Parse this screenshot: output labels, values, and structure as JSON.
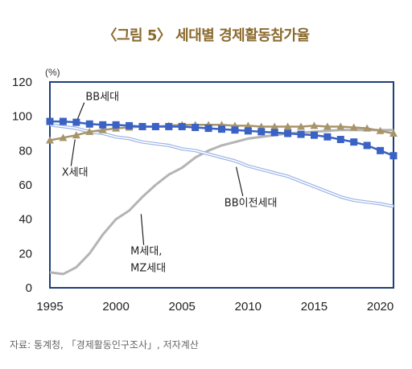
{
  "title": "〈그림 5〉 세대별 경제활동참가율",
  "source": "자료: 통계청, 「경제활동인구조사」, 저자계산",
  "colors": {
    "title": "#8a6a2e",
    "bb": "#3a62c4",
    "x": "#a8946a",
    "m_mz": "#b4b4b4",
    "bb_pre": "#9bb4e6",
    "axis_frame": "#1f3f7a"
  },
  "chart_data": {
    "type": "line",
    "title": "〈그림 5〉 세대별 경제활동참가율",
    "xlabel": "",
    "ylabel": "(%)",
    "xlim": [
      1995,
      2021
    ],
    "ylim": [
      0,
      120
    ],
    "x_ticks": [
      "1995",
      "2000",
      "2005",
      "2010",
      "2015",
      "2020"
    ],
    "y_ticks": [
      "0",
      "20",
      "40",
      "60",
      "80",
      "100",
      "120"
    ],
    "grid": false,
    "series": [
      {
        "name": "BB세대",
        "marker": "square",
        "x": [
          1995,
          1996,
          1997,
          1998,
          1999,
          2000,
          2001,
          2002,
          2003,
          2004,
          2005,
          2006,
          2007,
          2008,
          2009,
          2010,
          2011,
          2012,
          2013,
          2014,
          2015,
          2016,
          2017,
          2018,
          2019,
          2020,
          2021
        ],
        "y": [
          97,
          97,
          96.5,
          95.5,
          95,
          95,
          94.5,
          94,
          94,
          94,
          94,
          93.5,
          93,
          92.5,
          92,
          91.5,
          91,
          90.5,
          90,
          89.5,
          89,
          88,
          86.5,
          85,
          83,
          80,
          77
        ]
      },
      {
        "name": "X세대",
        "marker": "triangle",
        "x": [
          1995,
          1996,
          1997,
          1998,
          1999,
          2000,
          2001,
          2002,
          2003,
          2004,
          2005,
          2006,
          2007,
          2008,
          2009,
          2010,
          2011,
          2012,
          2013,
          2014,
          2015,
          2016,
          2017,
          2018,
          2019,
          2020,
          2021
        ],
        "y": [
          86,
          87.5,
          89,
          91,
          92,
          93,
          93.5,
          94,
          94,
          94.5,
          95,
          95,
          95,
          95,
          94.5,
          94.5,
          94,
          94,
          94,
          94,
          94.5,
          94,
          94,
          93.5,
          93,
          91.5,
          90
        ]
      },
      {
        "name": "M세대, MZ세대",
        "marker": "none",
        "x": [
          1995,
          1996,
          1997,
          1998,
          1999,
          2000,
          2001,
          2002,
          2003,
          2004,
          2005,
          2006,
          2007,
          2008,
          2009,
          2010,
          2011,
          2012,
          2013,
          2014,
          2015,
          2016,
          2017,
          2018,
          2019,
          2020,
          2021
        ],
        "y": [
          9,
          8,
          12,
          20,
          31,
          40,
          45,
          53,
          60,
          66,
          70,
          76,
          80,
          83,
          85,
          87,
          88,
          89,
          90,
          90.5,
          91,
          91.5,
          92,
          92,
          92,
          92,
          92
        ]
      },
      {
        "name": "BB이전세대",
        "marker": "none",
        "x": [
          1995,
          1996,
          1997,
          1998,
          1999,
          2000,
          2001,
          2002,
          2003,
          2004,
          2005,
          2006,
          2007,
          2008,
          2009,
          2010,
          2011,
          2012,
          2013,
          2014,
          2015,
          2016,
          2017,
          2018,
          2019,
          2020,
          2021
        ],
        "y": [
          95,
          94,
          93,
          91,
          90,
          88,
          87,
          85,
          84,
          83,
          81,
          80,
          78,
          76,
          74,
          71,
          69,
          67,
          65,
          62,
          59,
          56,
          53,
          51,
          50,
          49,
          47.5
        ]
      }
    ],
    "annotations": [
      {
        "text": "BB세대",
        "series": "BB세대"
      },
      {
        "text": "X세대",
        "series": "X세대"
      },
      {
        "text_lines": [
          "M세대,",
          "MZ세대"
        ],
        "series": "M세대, MZ세대"
      },
      {
        "text": "BB이전세대",
        "series": "BB이전세대"
      }
    ]
  }
}
